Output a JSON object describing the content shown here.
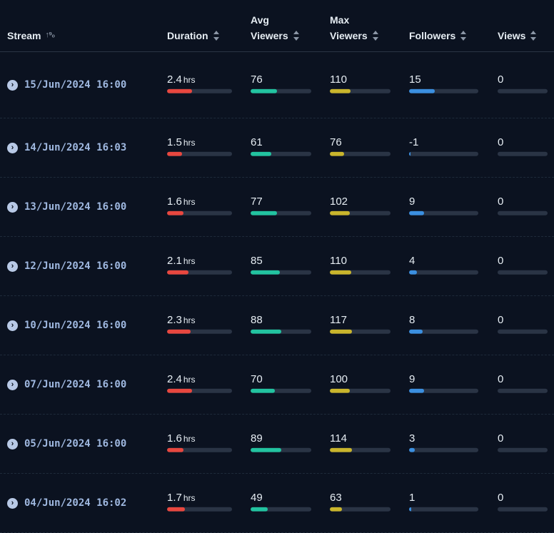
{
  "header": {
    "stream": "Stream",
    "duration": "Duration",
    "avg_viewers": "Avg\nViewers",
    "max_viewers": "Max\nViewers",
    "followers": "Followers",
    "views": "Views",
    "stream_sort_glyph": "↑⁹₀"
  },
  "colors": {
    "duration": "#e8473f",
    "avg_viewers": "#22c3a0",
    "max_viewers": "#c9b52c",
    "followers": "#3b8fe0",
    "views": "#6b7a90"
  },
  "unit_hrs": "hrs",
  "rows": [
    {
      "date": "15/Jun/2024 16:00",
      "duration": "2.4",
      "duration_pct": 0.38,
      "avg": "76",
      "avg_pct": 0.43,
      "max": "110",
      "max_pct": 0.34,
      "followers": "15",
      "followers_pct": 0.37,
      "views": "0",
      "views_pct": 0
    },
    {
      "date": "14/Jun/2024 16:03",
      "duration": "1.5",
      "duration_pct": 0.23,
      "avg": "61",
      "avg_pct": 0.34,
      "max": "76",
      "max_pct": 0.24,
      "followers": "-1",
      "followers_pct": 0.02,
      "views": "0",
      "views_pct": 0
    },
    {
      "date": "13/Jun/2024 16:00",
      "duration": "1.6",
      "duration_pct": 0.25,
      "avg": "77",
      "avg_pct": 0.44,
      "max": "102",
      "max_pct": 0.33,
      "followers": "9",
      "followers_pct": 0.22,
      "views": "0",
      "views_pct": 0
    },
    {
      "date": "12/Jun/2024 16:00",
      "duration": "2.1",
      "duration_pct": 0.33,
      "avg": "85",
      "avg_pct": 0.48,
      "max": "110",
      "max_pct": 0.35,
      "followers": "4",
      "followers_pct": 0.11,
      "views": "0",
      "views_pct": 0
    },
    {
      "date": "10/Jun/2024 16:00",
      "duration": "2.3",
      "duration_pct": 0.36,
      "avg": "88",
      "avg_pct": 0.5,
      "max": "117",
      "max_pct": 0.37,
      "followers": "8",
      "followers_pct": 0.2,
      "views": "0",
      "views_pct": 0
    },
    {
      "date": "07/Jun/2024 16:00",
      "duration": "2.4",
      "duration_pct": 0.38,
      "avg": "70",
      "avg_pct": 0.4,
      "max": "100",
      "max_pct": 0.33,
      "followers": "9",
      "followers_pct": 0.22,
      "views": "0",
      "views_pct": 0
    },
    {
      "date": "05/Jun/2024 16:00",
      "duration": "1.6",
      "duration_pct": 0.25,
      "avg": "89",
      "avg_pct": 0.5,
      "max": "114",
      "max_pct": 0.37,
      "followers": "3",
      "followers_pct": 0.08,
      "views": "0",
      "views_pct": 0
    },
    {
      "date": "04/Jun/2024 16:02",
      "duration": "1.7",
      "duration_pct": 0.27,
      "avg": "49",
      "avg_pct": 0.28,
      "max": "63",
      "max_pct": 0.2,
      "followers": "1",
      "followers_pct": 0.03,
      "views": "0",
      "views_pct": 0
    }
  ]
}
